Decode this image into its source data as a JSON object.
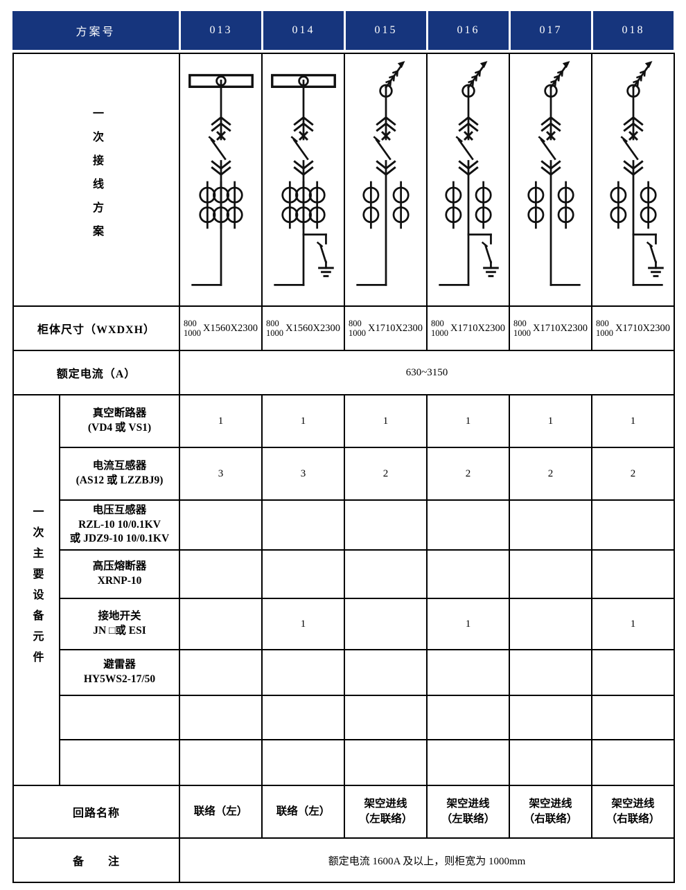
{
  "colors": {
    "header_bg": "#16357d",
    "header_text": "#ffffff",
    "border": "#000000",
    "line": "#111111"
  },
  "header": {
    "label": "方案号",
    "schemes": [
      "013",
      "014",
      "015",
      "016",
      "017",
      "018"
    ]
  },
  "rows": {
    "wiring_label": "一次接线方案",
    "cabinet_label": "柜体尺寸（WXDXH）",
    "cabinet_values": [
      {
        "top": "800",
        "bottom": "1000",
        "rest": "X1560X2300"
      },
      {
        "top": "800",
        "bottom": "1000",
        "rest": "X1560X2300"
      },
      {
        "top": "800",
        "bottom": "1000",
        "rest": "X1710X2300"
      },
      {
        "top": "800",
        "bottom": "1000",
        "rest": "X1710X2300"
      },
      {
        "top": "800",
        "bottom": "1000",
        "rest": "X1710X2300"
      },
      {
        "top": "800",
        "bottom": "1000",
        "rest": "X1710X2300"
      }
    ],
    "current_label": "额定电流（A）",
    "current_value": "630~3150",
    "equipment_label": "一次主要设备元件",
    "equipment": [
      {
        "name": "真空断路器\n(VD4 或 VS1)",
        "values": [
          "1",
          "1",
          "1",
          "1",
          "1",
          "1"
        ]
      },
      {
        "name": "电流互感器\n(AS12 或 LZZBJ9)",
        "values": [
          "3",
          "3",
          "2",
          "2",
          "2",
          "2"
        ]
      },
      {
        "name": "电压互感器\nRZL-10  10/0.1KV\n或 JDZ9-10  10/0.1KV",
        "values": [
          "",
          "",
          "",
          "",
          "",
          ""
        ]
      },
      {
        "name": "高压熔断器\nXRNP-10",
        "values": [
          "",
          "",
          "",
          "",
          "",
          ""
        ]
      },
      {
        "name": "接地开关\nJN □或 ESI",
        "values": [
          "",
          "1",
          "",
          "1",
          "",
          "1"
        ]
      },
      {
        "name": "避雷器\nHY5WS2-17/50",
        "values": [
          "",
          "",
          "",
          "",
          "",
          ""
        ]
      },
      {
        "name": "",
        "values": [
          "",
          "",
          "",
          "",
          "",
          ""
        ]
      },
      {
        "name": "",
        "values": [
          "",
          "",
          "",
          "",
          "",
          ""
        ]
      }
    ],
    "circuit_label": "回路名称",
    "circuit_values": [
      "联络（左）",
      "联络（左）",
      "架空进线\n（左联络）",
      "架空进线\n（左联络）",
      "架空进线\n（右联络）",
      "架空进线\n（右联络）"
    ],
    "remark_label": "备　　注",
    "remark_value": "额定电流 1600A 及以上，则柜宽为 1000mm"
  },
  "diagrams": [
    {
      "scheme": "013",
      "top": "busbar",
      "ct_count": 3,
      "earth_switch": false,
      "exit_direction": "left"
    },
    {
      "scheme": "014",
      "top": "busbar",
      "ct_count": 3,
      "earth_switch": true,
      "exit_direction": "left"
    },
    {
      "scheme": "015",
      "top": "overhead",
      "ct_count": 2,
      "earth_switch": false,
      "exit_direction": "left"
    },
    {
      "scheme": "016",
      "top": "overhead",
      "ct_count": 2,
      "earth_switch": true,
      "exit_direction": "left"
    },
    {
      "scheme": "017",
      "top": "overhead",
      "ct_count": 2,
      "earth_switch": false,
      "exit_direction": "right"
    },
    {
      "scheme": "018",
      "top": "overhead",
      "ct_count": 2,
      "earth_switch": true,
      "exit_direction": "right"
    }
  ]
}
